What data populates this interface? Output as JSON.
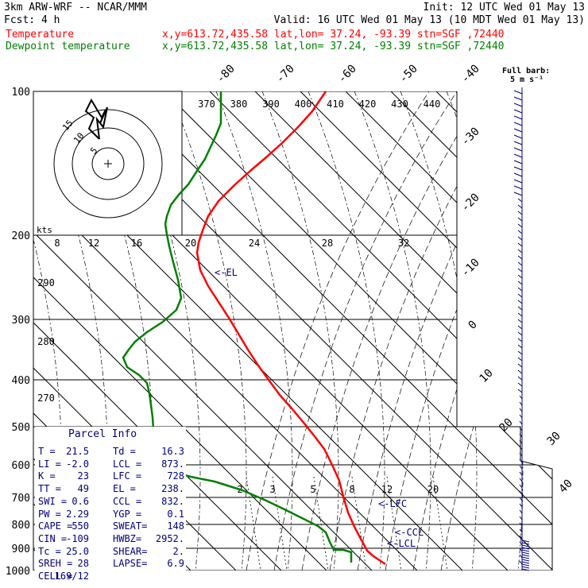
{
  "header": {
    "line1_left": "3km ARW-WRF -- NCAR/MMM",
    "line1_right": "Init: 12 UTC Wed 01 May 13",
    "line2_left": "Fcst:     4 h",
    "line2_right": "Valid: 16 UTC Wed 01 May 13 (10 MDT Wed 01 May 13)",
    "line3_label": "Temperature",
    "line3_info": "x,y=613.72,435.58   lat,lon= 37.24, -93.39   stn=SGF ,72440",
    "line4_label": "Dewpoint temperature",
    "line4_info": "x,y=613.72,435.58   lat,lon= 37.24, -93.39   stn=SGF ,72440",
    "colors": {
      "temperature": "#ff0000",
      "dewpoint": "#008000",
      "info": "#000080"
    }
  },
  "barb_legend": {
    "line1": "Full barb:",
    "line2": "5 m s⁻¹"
  },
  "chart_data": {
    "type": "line",
    "title": "",
    "xlabel": "",
    "ylabel": "",
    "pressure_levels": [
      "100",
      "200",
      "300",
      "400",
      "500",
      "600",
      "700",
      "800",
      "900",
      "1000"
    ],
    "isotherm_labels": [
      "-80",
      "-70",
      "-60",
      "-50",
      "-40",
      "-30",
      "-20",
      "-10",
      "0",
      "10",
      "20",
      "30",
      "40"
    ],
    "theta_labels_top": [
      "370",
      "380",
      "390",
      "400",
      "410",
      "420",
      "430",
      "440"
    ],
    "theta_labels_left": [
      "290",
      "280",
      "270"
    ],
    "mixing_ratio_labels": [
      "2",
      "3",
      "5",
      "8",
      "12",
      "20"
    ],
    "hodograph_speed_labels": [
      "8",
      "12",
      "16",
      "20",
      "24",
      "28",
      "32"
    ],
    "hodograph_ring_labels": [
      "5",
      "10",
      "15"
    ],
    "hodograph_units": "kts",
    "series": [
      {
        "name": "Temperature",
        "color": "#ff0000",
        "points": [
          [
            410,
            115
          ],
          [
            393,
            140
          ],
          [
            375,
            160
          ],
          [
            355,
            180
          ],
          [
            335,
            198
          ],
          [
            315,
            215
          ],
          [
            295,
            233
          ],
          [
            275,
            253
          ],
          [
            262,
            272
          ],
          [
            255,
            290
          ],
          [
            250,
            305
          ],
          [
            248,
            318
          ],
          [
            252,
            340
          ],
          [
            262,
            360
          ],
          [
            275,
            380
          ],
          [
            288,
            400
          ],
          [
            300,
            420
          ],
          [
            312,
            440
          ],
          [
            325,
            460
          ],
          [
            338,
            478
          ],
          [
            352,
            497
          ],
          [
            368,
            515
          ],
          [
            383,
            533
          ],
          [
            395,
            548
          ],
          [
            408,
            565
          ],
          [
            418,
            585
          ],
          [
            427,
            605
          ],
          [
            432,
            625
          ],
          [
            438,
            645
          ],
          [
            446,
            663
          ],
          [
            455,
            680
          ],
          [
            462,
            693
          ],
          [
            470,
            700
          ],
          [
            479,
            706
          ],
          [
            485,
            710
          ]
        ]
      },
      {
        "name": "Dewpoint temperature",
        "color": "#008000",
        "points": [
          [
            278,
            115
          ],
          [
            278,
            140
          ],
          [
            278,
            155
          ],
          [
            272,
            170
          ],
          [
            265,
            185
          ],
          [
            258,
            200
          ],
          [
            248,
            215
          ],
          [
            237,
            232
          ],
          [
            225,
            245
          ],
          [
            215,
            258
          ],
          [
            210,
            272
          ],
          [
            208,
            282
          ],
          [
            210,
            295
          ],
          [
            213,
            310
          ],
          [
            218,
            330
          ],
          [
            224,
            352
          ],
          [
            228,
            375
          ],
          [
            222,
            390
          ],
          [
            205,
            405
          ],
          [
            185,
            418
          ],
          [
            170,
            430
          ],
          [
            162,
            440
          ],
          [
            155,
            450
          ],
          [
            160,
            462
          ],
          [
            175,
            472
          ],
          [
            185,
            482
          ],
          [
            188,
            495
          ],
          [
            190,
            510
          ],
          [
            192,
            525
          ],
          [
            193,
            540
          ],
          [
            195,
            555
          ],
          [
            196,
            570
          ],
          [
            200,
            585
          ],
          [
            215,
            593
          ],
          [
            240,
            600
          ],
          [
            270,
            606
          ],
          [
            305,
            617
          ],
          [
            335,
            630
          ],
          [
            360,
            642
          ],
          [
            380,
            652
          ],
          [
            400,
            662
          ],
          [
            410,
            670
          ],
          [
            415,
            682
          ],
          [
            420,
            692
          ],
          [
            432,
            692
          ],
          [
            442,
            695
          ],
          [
            442,
            708
          ]
        ]
      }
    ],
    "markers": [
      {
        "label": "<-EL",
        "t": 250,
        "p": 342,
        "color": "#000080"
      },
      {
        "label": "<-LFC",
        "t": 456,
        "p": 633,
        "color": "#000080"
      },
      {
        "label": "<-CCL",
        "t": 477,
        "p": 669,
        "color": "#000080"
      },
      {
        "label": "<-LCL",
        "t": 467,
        "p": 683,
        "color": "#000080"
      }
    ]
  },
  "parcel_info": {
    "title": "Parcel Info",
    "rows": [
      [
        "T  =",
        "21.5",
        "Td =",
        "16.3"
      ],
      [
        "LI =",
        "-2.0",
        "LCL =",
        "873."
      ],
      [
        "K  =",
        "23",
        "LFC =",
        "728"
      ],
      [
        "TT =",
        "49",
        "EL =",
        "238."
      ],
      [
        "SWI =",
        "0.6",
        "CCL =",
        "832."
      ],
      [
        "PW =",
        "2.29",
        "YGP =",
        "0.1"
      ],
      [
        "CAPE =",
        "550",
        "SWEAT=",
        "148"
      ],
      [
        "CIN =",
        "-109",
        "HWBZ=",
        "2952."
      ],
      [
        "Tc =",
        "25.0",
        "SHEAR=",
        "2."
      ],
      [
        "SREH =",
        "28",
        "LAPSE=",
        "6.9"
      ],
      [
        "CELL =",
        "169/12",
        "",
        ""
      ]
    ]
  }
}
